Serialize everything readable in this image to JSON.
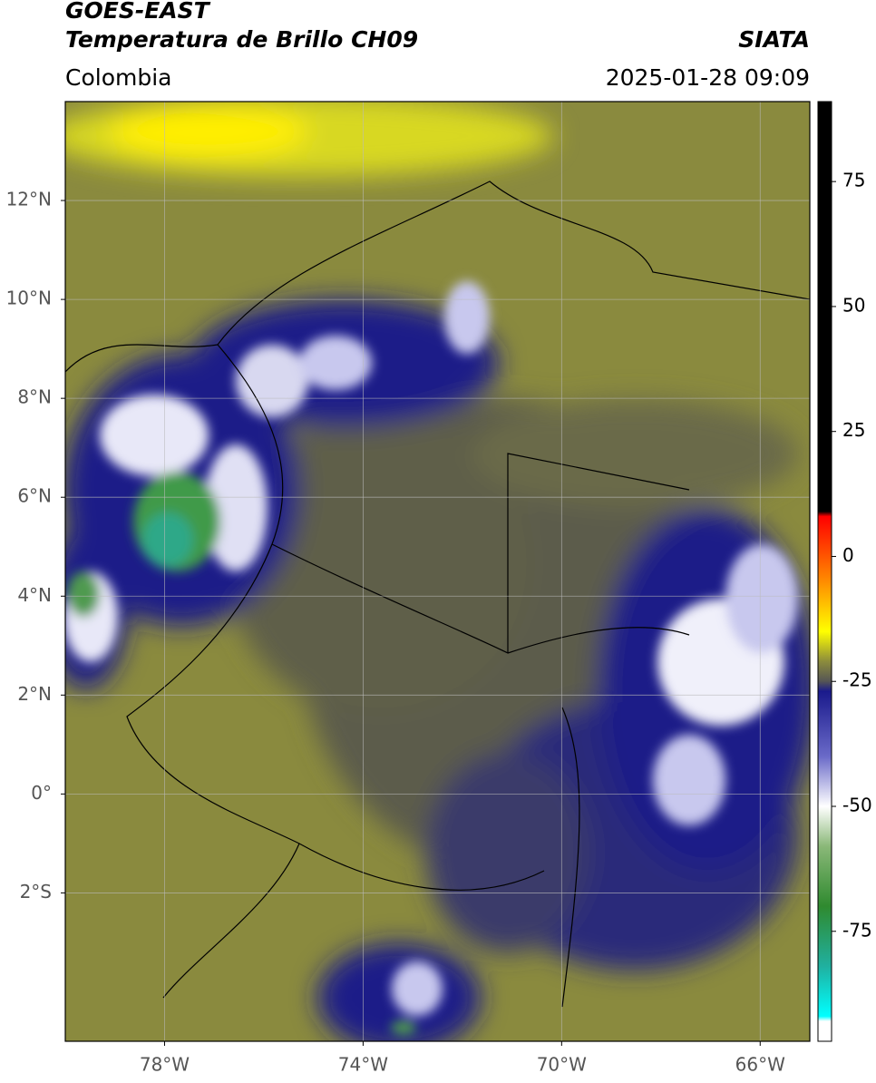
{
  "chart_data": {
    "type": "map",
    "title": "GOES-EAST",
    "subtitle": "Temperatura de Brillo CH09",
    "region": "Colombia",
    "source": "SIATA",
    "datetime": "2025-01-28 09:09",
    "xlim": [
      -80,
      -65
    ],
    "ylim": [
      -5,
      14
    ],
    "xticks": [
      {
        "value": -78,
        "label": "78°W"
      },
      {
        "value": -74,
        "label": "74°W"
      },
      {
        "value": -70,
        "label": "70°W"
      },
      {
        "value": -66,
        "label": "66°W"
      }
    ],
    "yticks": [
      {
        "value": 12,
        "label": "12°N"
      },
      {
        "value": 10,
        "label": "10°N"
      },
      {
        "value": 8,
        "label": "8°N"
      },
      {
        "value": 6,
        "label": "6°N"
      },
      {
        "value": 4,
        "label": "4°N"
      },
      {
        "value": 2,
        "label": "2°N"
      },
      {
        "value": 0,
        "label": "0°"
      },
      {
        "value": -2,
        "label": "2°S"
      }
    ],
    "grid": true,
    "colorbar": {
      "clim": [
        -97,
        91
      ],
      "ticks": [
        75,
        50,
        25,
        0,
        -25,
        -50,
        -75
      ],
      "colormap": [
        {
          "value": 91,
          "color": "#000000"
        },
        {
          "value": 9,
          "color": "#000000"
        },
        {
          "value": 8,
          "color": "#ff0000"
        },
        {
          "value": -5,
          "color": "#ff8c00"
        },
        {
          "value": -15,
          "color": "#ffff00"
        },
        {
          "value": -21,
          "color": "#8c8c3c"
        },
        {
          "value": -25,
          "color": "#555555"
        },
        {
          "value": -27,
          "color": "#1a1a8c"
        },
        {
          "value": -40,
          "color": "#6a6ac8"
        },
        {
          "value": -50,
          "color": "#ffffff"
        },
        {
          "value": -58,
          "color": "#8ab878"
        },
        {
          "value": -70,
          "color": "#2f8a2f"
        },
        {
          "value": -82,
          "color": "#20b0a0"
        },
        {
          "value": -92,
          "color": "#00ffff"
        },
        {
          "value": -93,
          "color": "#ffffff"
        },
        {
          "value": -97,
          "color": "#ffffff"
        }
      ]
    }
  }
}
